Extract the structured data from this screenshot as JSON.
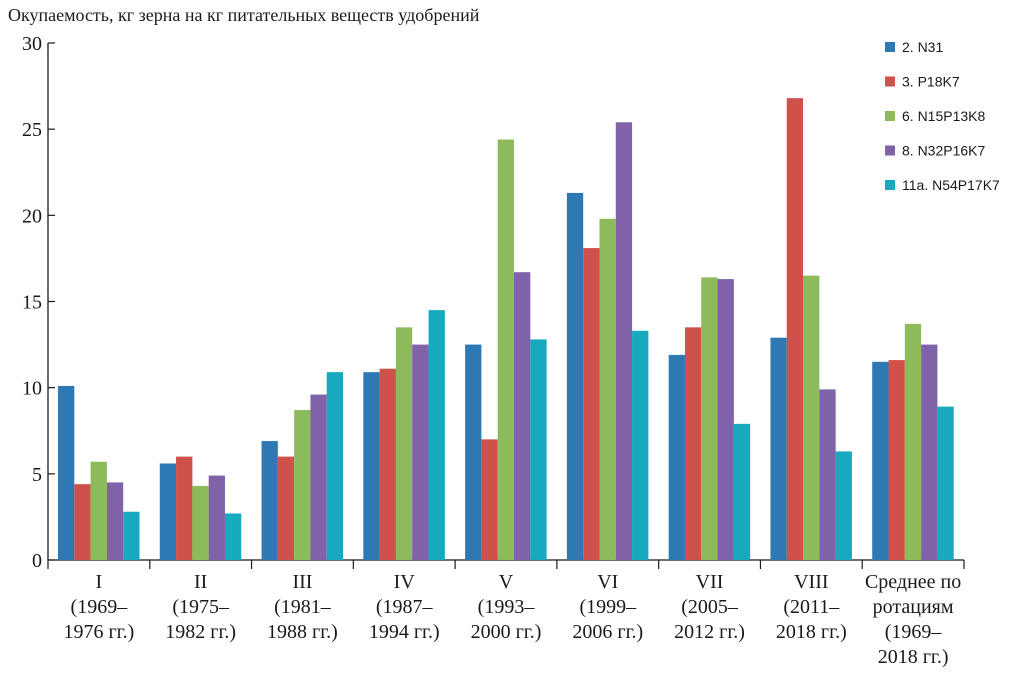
{
  "chart_data": {
    "type": "bar",
    "title": "",
    "ylabel": "Окупаемость, кг зерна на кг питательных веществ удобрений",
    "xlabel": "",
    "ylim": [
      0,
      30
    ],
    "yticks": [
      "0",
      "5",
      "10",
      "15",
      "20",
      "25",
      "30"
    ],
    "grid": false,
    "legend_position": "top-right",
    "categories": [
      [
        "I",
        "(1969–",
        "1976 гг.)"
      ],
      [
        "II",
        "(1975–",
        "1982 гг.)"
      ],
      [
        "III",
        "(1981–",
        "1988 гг.)"
      ],
      [
        "IV",
        "(1987–",
        "1994 гг.)"
      ],
      [
        "V",
        "(1993–",
        "2000 гг.)"
      ],
      [
        "VI",
        "(1999–",
        "2006 гг.)"
      ],
      [
        "VII",
        "(2005–",
        "2012 гг.)"
      ],
      [
        "VIII",
        "(2011–",
        "2018 гг.)"
      ],
      [
        "Среднее по",
        "ротациям",
        "(1969–",
        "2018 гг.)"
      ]
    ],
    "series": [
      {
        "name": "2. N31",
        "color": "#2e78b4",
        "values": [
          10.1,
          5.6,
          6.9,
          10.9,
          12.5,
          21.3,
          11.9,
          12.9,
          11.5
        ]
      },
      {
        "name": "3. P18K7",
        "color": "#d0504c",
        "values": [
          4.4,
          6.0,
          6.0,
          11.1,
          7.0,
          18.1,
          13.5,
          26.8,
          11.6
        ]
      },
      {
        "name": "6. N15P13K8",
        "color": "#8dba5a",
        "values": [
          5.7,
          4.3,
          8.7,
          13.5,
          24.4,
          19.8,
          16.4,
          16.5,
          13.7
        ]
      },
      {
        "name": "8. N32P16K7",
        "color": "#7f62a8",
        "values": [
          4.5,
          4.9,
          9.6,
          12.5,
          16.7,
          25.4,
          16.3,
          9.9,
          12.5
        ]
      },
      {
        "name": "11a. N54P17K7",
        "color": "#18a9bf",
        "values": [
          2.8,
          2.7,
          10.9,
          14.5,
          12.8,
          13.3,
          7.9,
          6.3,
          8.9
        ]
      }
    ]
  }
}
